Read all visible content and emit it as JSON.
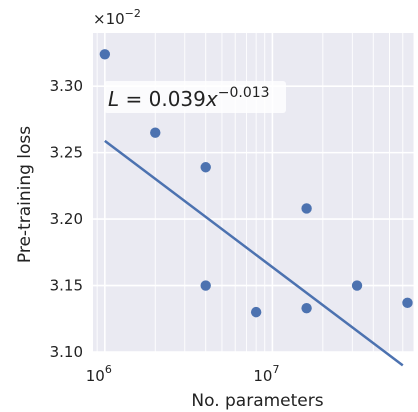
{
  "chart_data": {
    "type": "scatter",
    "xlabel": "No. parameters",
    "ylabel": "Pre-training loss",
    "xscale": "log",
    "xlim": [
      850000,
      70000000
    ],
    "ylim": [
      0.031,
      0.0334
    ],
    "x_ticks": [
      {
        "value": 1000000,
        "base": "10",
        "exp": "6"
      },
      {
        "value": 10000000,
        "base": "10",
        "exp": "7"
      }
    ],
    "y_ticks": [
      {
        "value": 0.031,
        "label": "3.10"
      },
      {
        "value": 0.0315,
        "label": "3.15"
      },
      {
        "value": 0.032,
        "label": "3.20"
      },
      {
        "value": 0.0325,
        "label": "3.25"
      },
      {
        "value": 0.033,
        "label": "3.30"
      }
    ],
    "y_multiplier": {
      "base": "×10",
      "exp": "−2"
    },
    "grid": true,
    "background_color": "#eaeaf2",
    "series": [
      {
        "color": "#4c72b0",
        "points": [
          {
            "x": 1000000,
            "y": 0.03324
          },
          {
            "x": 2000000,
            "y": 0.03265
          },
          {
            "x": 4000000,
            "y": 0.03239
          },
          {
            "x": 4000000,
            "y": 0.0315
          },
          {
            "x": 8000000,
            "y": 0.0313
          },
          {
            "x": 16000000,
            "y": 0.03208
          },
          {
            "x": 16000000,
            "y": 0.03133
          },
          {
            "x": 32000000,
            "y": 0.0315
          },
          {
            "x": 64000000,
            "y": 0.03137
          }
        ]
      }
    ],
    "fit_line": {
      "color": "#4c72b0",
      "x_range": [
        1000000,
        60000000
      ],
      "label": {
        "lhs": "L",
        "eq": " = 0.039",
        "var": "x",
        "exp": "−0.013"
      }
    }
  }
}
